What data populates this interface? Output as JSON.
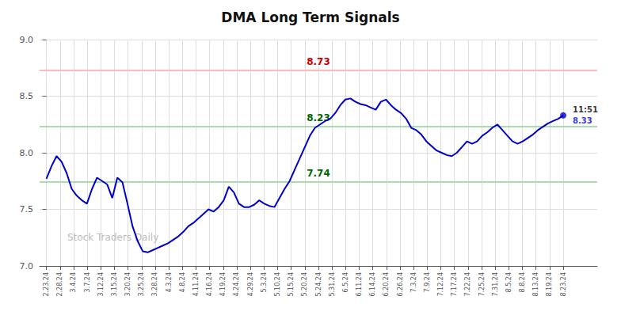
{
  "chart_data": {
    "type": "line",
    "title": "DMA Long Term Signals",
    "background_color": "#ffffff",
    "grid": true,
    "color": "#0000cc",
    "x": [
      0,
      0.3725,
      0.7451,
      1.1176,
      1.4902,
      1.8627,
      2.2353,
      2.6078,
      2.9804,
      3.3529,
      3.7255,
      4.098,
      4.4706,
      4.8431,
      5.2157,
      5.5882,
      5.9608,
      6.3333,
      6.7059,
      7.0784,
      7.451,
      7.8235,
      8.1961,
      8.5686,
      8.9412,
      9.3137,
      9.6863,
      10.0588,
      10.4314,
      10.8039,
      11.1765,
      11.549,
      11.9216,
      12.2941,
      12.6667,
      13.0392,
      13.4118,
      13.7843,
      14.1569,
      14.5294,
      14.902,
      15.2745,
      15.6471,
      16.0196,
      16.3922,
      16.7647,
      17.1373,
      17.5098,
      17.8824,
      18.2549,
      18.6275,
      19,
      19.3725,
      19.7451,
      20.1176,
      20.4902,
      20.8627,
      21.2353,
      21.6078,
      21.9804,
      22.3529,
      22.7255,
      23.098,
      23.4706,
      23.8431,
      24.2157,
      24.5882,
      24.9608,
      25.3333,
      25.7059,
      26.0784,
      26.451,
      26.8235,
      27.1961,
      27.5686,
      27.9412,
      28.3137,
      28.6863,
      29.0588,
      29.4314,
      29.8039,
      30.1765,
      30.549,
      30.9216,
      31.2941,
      31.6667,
      32.0392,
      32.4118,
      32.7843,
      33.1569,
      33.5294,
      33.902,
      34.2745,
      34.6471,
      35.0196,
      35.3922,
      35.7647,
      36.1373,
      36.5098,
      36.8824,
      37.2549,
      37.6275,
      38
    ],
    "values": [
      7.77,
      7.88,
      7.97,
      7.92,
      7.82,
      7.68,
      7.62,
      7.58,
      7.55,
      7.68,
      7.78,
      7.75,
      7.72,
      7.6,
      7.78,
      7.74,
      7.55,
      7.35,
      7.22,
      7.13,
      7.12,
      7.14,
      7.16,
      7.18,
      7.2,
      7.23,
      7.26,
      7.3,
      7.35,
      7.38,
      7.42,
      7.46,
      7.5,
      7.48,
      7.52,
      7.58,
      7.7,
      7.65,
      7.55,
      7.52,
      7.52,
      7.54,
      7.58,
      7.55,
      7.53,
      7.52,
      7.6,
      7.68,
      7.75,
      7.85,
      7.95,
      8.05,
      8.15,
      8.22,
      8.25,
      8.28,
      8.3,
      8.35,
      8.42,
      8.47,
      8.48,
      8.45,
      8.43,
      8.42,
      8.4,
      8.38,
      8.45,
      8.47,
      8.42,
      8.38,
      8.35,
      8.3,
      8.22,
      8.2,
      8.16,
      8.1,
      8.06,
      8.02,
      8.0,
      7.98,
      7.97,
      8.0,
      8.05,
      8.1,
      8.08,
      8.1,
      8.15,
      8.18,
      8.22,
      8.25,
      8.2,
      8.15,
      8.1,
      8.08,
      8.1,
      8.13,
      8.16,
      8.2,
      8.23,
      8.26,
      8.28,
      8.3,
      8.33
    ],
    "xlim": [
      -0.5,
      40.5
    ],
    "xticks": [
      {
        "value": 0,
        "label": "2.23.24"
      },
      {
        "value": 1,
        "label": "2.28.24"
      },
      {
        "value": 2,
        "label": "3.4.24"
      },
      {
        "value": 3,
        "label": "3.7.24"
      },
      {
        "value": 4,
        "label": "3.12.24"
      },
      {
        "value": 5,
        "label": "3.15.24"
      },
      {
        "value": 6,
        "label": "3.20.24"
      },
      {
        "value": 7,
        "label": "3.25.24"
      },
      {
        "value": 8,
        "label": "3.28.24"
      },
      {
        "value": 9,
        "label": "4.3.24"
      },
      {
        "value": 10,
        "label": "4.8.24"
      },
      {
        "value": 11,
        "label": "4.11.24"
      },
      {
        "value": 12,
        "label": "4.16.24"
      },
      {
        "value": 13,
        "label": "4.19.24"
      },
      {
        "value": 14,
        "label": "4.24.24"
      },
      {
        "value": 15,
        "label": "4.29.24"
      },
      {
        "value": 16,
        "label": "5.3.24"
      },
      {
        "value": 17,
        "label": "5.10.24"
      },
      {
        "value": 18,
        "label": "5.15.24"
      },
      {
        "value": 19,
        "label": "5.20.24"
      },
      {
        "value": 20,
        "label": "5.24.24"
      },
      {
        "value": 21,
        "label": "5.31.24"
      },
      {
        "value": 22,
        "label": "6.5.24"
      },
      {
        "value": 23,
        "label": "6.11.24"
      },
      {
        "value": 24,
        "label": "6.14.24"
      },
      {
        "value": 25,
        "label": "6.20.24"
      },
      {
        "value": 26,
        "label": "6.26.24"
      },
      {
        "value": 27,
        "label": "7.3.24"
      },
      {
        "value": 28,
        "label": "7.9.24"
      },
      {
        "value": 29,
        "label": "7.12.24"
      },
      {
        "value": 30,
        "label": "7.17.24"
      },
      {
        "value": 31,
        "label": "7.22.24"
      },
      {
        "value": 32,
        "label": "7.25.24"
      },
      {
        "value": 33,
        "label": "7.31.24"
      },
      {
        "value": 34,
        "label": "8.5.24"
      },
      {
        "value": 35,
        "label": "8.8.24"
      },
      {
        "value": 36,
        "label": "8.13.24"
      },
      {
        "value": 37,
        "label": "8.19.24"
      },
      {
        "value": 38,
        "label": "8.23.24"
      }
    ],
    "ylim": [
      7.0,
      9.0
    ],
    "yticks": [
      {
        "value": 7.0,
        "label": "7.0"
      },
      7.5,
      {
        "value": 8.0,
        "label": "8.0"
      },
      8.5,
      {
        "value": 9.0,
        "label": "9.0"
      }
    ],
    "reference_lines": [
      {
        "value": 8.73,
        "label": "8.73",
        "color": "#ffbbbb",
        "label_color": "#cc0000"
      },
      {
        "value": 8.23,
        "label": "8.23",
        "color": "#aaddaa",
        "label_color": "#006600"
      },
      {
        "value": 7.74,
        "label": "7.74",
        "color": "#aaddaa",
        "label_color": "#006600"
      }
    ],
    "last_point": {
      "color": "#0000cc",
      "time_label": "11:51",
      "value_label": "8.33"
    },
    "watermark": "Stock Traders Daily"
  }
}
